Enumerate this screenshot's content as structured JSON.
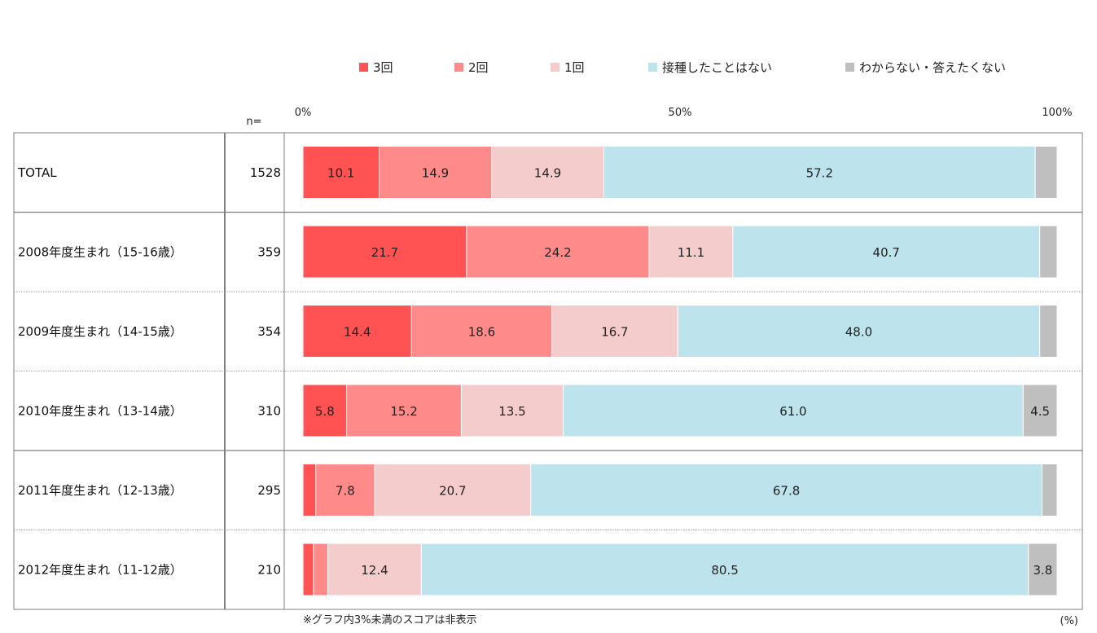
{
  "chart_data": {
    "type": "bar",
    "orientation": "horizontal",
    "stacked": true,
    "percent": true,
    "xlim": [
      0,
      100
    ],
    "axis_ticks": [
      "0%",
      "50%",
      "100%"
    ],
    "n_header": "n=",
    "unit_label": "(%)",
    "note": "※グラフ内3%未満のスコアは非表示",
    "legend_position": "top",
    "categories": [
      "TOTAL",
      "2008年度生まれ（15-16歳）",
      "2009年度生まれ（14-15歳）",
      "2010年度生まれ（13-14歳）",
      "2011年度生まれ（12-13歳）",
      "2012年度生まれ（11-12歳）"
    ],
    "n": [
      "1528",
      "359",
      "354",
      "310",
      "295",
      "210"
    ],
    "series": [
      {
        "name": "3回",
        "color": "#ff5252",
        "values": [
          10.1,
          21.7,
          14.4,
          5.8,
          1.7,
          1.4
        ]
      },
      {
        "name": "2回",
        "color": "#ff8a8a",
        "values": [
          14.9,
          24.2,
          18.6,
          15.2,
          7.8,
          1.9
        ]
      },
      {
        "name": "1回",
        "color": "#f5cccc",
        "values": [
          14.9,
          11.1,
          16.7,
          13.5,
          20.7,
          12.4
        ]
      },
      {
        "name": "接種したことはない",
        "color": "#bde3ec",
        "values": [
          57.2,
          40.7,
          48.0,
          61.0,
          67.8,
          80.5
        ]
      },
      {
        "name": "わからない・答えたくない",
        "color": "#bfbfbf",
        "values": [
          2.9,
          2.3,
          2.3,
          4.5,
          2.0,
          3.8
        ]
      }
    ],
    "label_threshold": 3
  }
}
